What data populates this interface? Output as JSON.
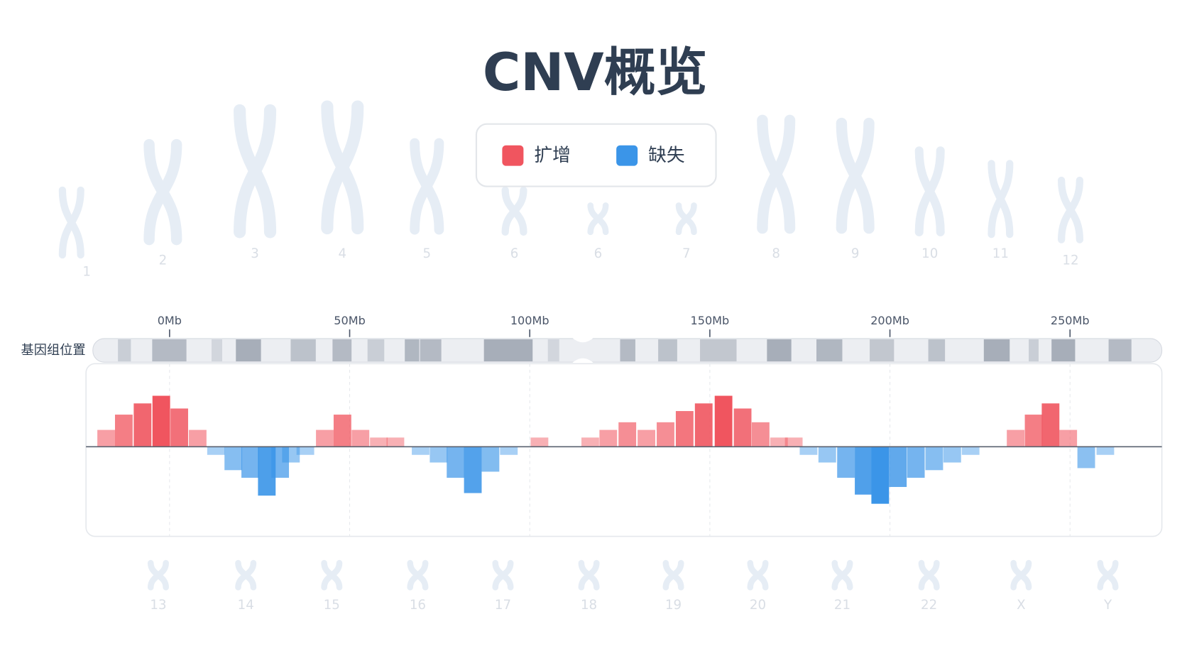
{
  "chart_data": {
    "type": "bar",
    "title": "CNV概览",
    "track_label": "基因组位置",
    "xlim": [
      -23.2,
      275.5
    ],
    "xticks": [
      {
        "value": 0,
        "label": "0Mb"
      },
      {
        "value": 50,
        "label": "50Mb"
      },
      {
        "value": 100,
        "label": "100Mb"
      },
      {
        "value": 150,
        "label": "150Mb"
      },
      {
        "value": 200,
        "label": "200Mb"
      },
      {
        "value": 250,
        "label": "250Mb"
      }
    ],
    "ylim": [
      -1.76,
      1.63
    ],
    "series": [
      {
        "name": "扩增",
        "color": "#f0555f",
        "x": [
          -17.6,
          -12.7,
          -7.5,
          -2.3,
          2.7,
          7.8,
          43.1,
          48.0,
          53.0,
          58.1,
          62.7,
          102.7,
          116.8,
          121.8,
          127.1,
          132.4,
          137.7,
          143.0,
          148.3,
          153.8,
          159.1,
          164.1,
          169.2,
          173.3,
          234.9,
          239.9,
          244.6,
          249.5
        ],
        "values": [
          0.33,
          0.63,
          0.85,
          1.0,
          0.75,
          0.33,
          0.33,
          0.63,
          0.33,
          0.18,
          0.18,
          0.18,
          0.18,
          0.33,
          0.48,
          0.33,
          0.48,
          0.7,
          0.85,
          1.0,
          0.75,
          0.48,
          0.18,
          0.18,
          0.33,
          0.63,
          0.85,
          0.33
        ]
      },
      {
        "name": "缺失",
        "color": "#3b95e8",
        "x": [
          12.9,
          17.7,
          22.4,
          27.0,
          30.7,
          33.7,
          37.7,
          69.7,
          74.7,
          79.4,
          84.2,
          89.1,
          94.2,
          177.4,
          182.6,
          187.8,
          192.7,
          197.3,
          202.2,
          207.2,
          212.3,
          217.3,
          222.4,
          254.5,
          259.8
        ],
        "values": [
          -0.16,
          -0.46,
          -0.61,
          -0.96,
          -0.61,
          -0.31,
          -0.16,
          -0.16,
          -0.31,
          -0.61,
          -0.91,
          -0.49,
          -0.16,
          -0.16,
          -0.31,
          -0.61,
          -0.94,
          -1.12,
          -0.79,
          -0.61,
          -0.46,
          -0.31,
          -0.16,
          -0.42,
          -0.16
        ]
      }
    ]
  },
  "chromosomes": {
    "top": [
      "1",
      "2",
      "3",
      "4",
      "5",
      "6",
      "6",
      "7",
      "8",
      "9",
      "10",
      "11",
      "12"
    ],
    "bottom": [
      "13",
      "14",
      "15",
      "16",
      "17",
      "18",
      "19",
      "20",
      "21",
      "22",
      "X",
      "Y"
    ]
  }
}
